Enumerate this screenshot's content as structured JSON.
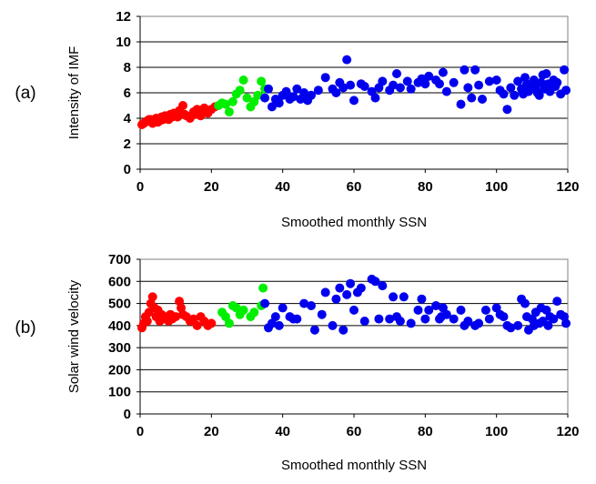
{
  "chart_data": [
    {
      "type": "scatter",
      "panel_label": "(a)",
      "xlabel": "Smoothed monthly SSN",
      "ylabel": "Intensity of IMF",
      "xlim": [
        0,
        120
      ],
      "ylim": [
        0,
        12
      ],
      "xticks": [
        0,
        20,
        40,
        60,
        80,
        100,
        120
      ],
      "yticks": [
        0,
        2,
        4,
        6,
        8,
        10,
        12
      ],
      "grid": "horizontal",
      "legend": "none",
      "series": [
        {
          "color": "#ff0000",
          "points": [
            [
              0.5,
              3.5
            ],
            [
              1,
              3.6
            ],
            [
              1.5,
              3.7
            ],
            [
              2,
              3.8
            ],
            [
              2.5,
              3.9
            ],
            [
              3,
              3.9
            ],
            [
              3.5,
              3.6
            ],
            [
              4,
              3.8
            ],
            [
              4.5,
              4.0
            ],
            [
              5,
              3.7
            ],
            [
              5.5,
              3.8
            ],
            [
              6,
              4.1
            ],
            [
              6.5,
              3.9
            ],
            [
              7,
              4.2
            ],
            [
              7.5,
              4.0
            ],
            [
              8,
              3.9
            ],
            [
              8.5,
              4.3
            ],
            [
              9,
              4.1
            ],
            [
              9.5,
              4.4
            ],
            [
              10,
              4.2
            ],
            [
              10.5,
              4.1
            ],
            [
              11,
              4.6
            ],
            [
              12,
              5.0
            ],
            [
              12.5,
              4.3
            ],
            [
              13,
              4.2
            ],
            [
              14,
              4.0
            ],
            [
              15,
              4.5
            ],
            [
              15.5,
              4.3
            ],
            [
              16,
              4.7
            ],
            [
              16.5,
              4.5
            ],
            [
              17,
              4.2
            ],
            [
              18,
              4.8
            ],
            [
              19,
              4.4
            ],
            [
              20,
              4.7
            ],
            [
              21,
              4.9
            ]
          ]
        },
        {
          "color": "#00ee00",
          "points": [
            [
              22,
              5.0
            ],
            [
              23,
              5.2
            ],
            [
              24,
              5.1
            ],
            [
              25,
              4.5
            ],
            [
              26,
              5.3
            ],
            [
              27,
              5.9
            ],
            [
              28,
              6.2
            ],
            [
              29,
              7.0
            ],
            [
              30,
              5.6
            ],
            [
              31,
              4.9
            ],
            [
              32,
              5.3
            ],
            [
              33,
              5.8
            ],
            [
              34,
              6.9
            ],
            [
              35,
              6.3
            ]
          ]
        },
        {
          "color": "#0000ee",
          "points": [
            [
              35,
              5.6
            ],
            [
              36,
              6.3
            ],
            [
              37,
              4.9
            ],
            [
              38,
              5.5
            ],
            [
              39,
              5.2
            ],
            [
              40,
              5.8
            ],
            [
              41,
              6.1
            ],
            [
              42,
              5.5
            ],
            [
              43,
              5.7
            ],
            [
              44,
              6.3
            ],
            [
              45,
              5.5
            ],
            [
              46,
              6.0
            ],
            [
              47,
              5.4
            ],
            [
              48,
              5.8
            ],
            [
              50,
              6.2
            ],
            [
              52,
              7.2
            ],
            [
              54,
              6.3
            ],
            [
              55,
              6.0
            ],
            [
              56,
              6.8
            ],
            [
              57,
              6.4
            ],
            [
              58,
              8.6
            ],
            [
              59,
              6.6
            ],
            [
              60,
              5.4
            ],
            [
              62,
              6.7
            ],
            [
              63,
              6.5
            ],
            [
              65,
              6.1
            ],
            [
              66,
              5.6
            ],
            [
              67,
              6.4
            ],
            [
              68,
              6.9
            ],
            [
              70,
              6.2
            ],
            [
              71,
              6.6
            ],
            [
              72,
              7.5
            ],
            [
              73,
              6.4
            ],
            [
              75,
              6.9
            ],
            [
              76,
              6.3
            ],
            [
              78,
              6.8
            ],
            [
              79,
              7.1
            ],
            [
              80,
              6.7
            ],
            [
              81,
              7.3
            ],
            [
              83,
              7.0
            ],
            [
              84,
              6.7
            ],
            [
              85,
              7.6
            ],
            [
              86,
              6.1
            ],
            [
              88,
              6.8
            ],
            [
              90,
              5.1
            ],
            [
              91,
              7.8
            ],
            [
              92,
              6.4
            ],
            [
              93,
              5.6
            ],
            [
              94,
              7.8
            ],
            [
              95,
              6.6
            ],
            [
              96,
              5.5
            ],
            [
              98,
              6.9
            ],
            [
              100,
              7.0
            ],
            [
              101,
              6.2
            ],
            [
              102,
              5.9
            ],
            [
              103,
              4.7
            ],
            [
              104,
              6.4
            ],
            [
              105,
              5.8
            ],
            [
              106,
              6.9
            ],
            [
              107,
              6.3
            ],
            [
              107.5,
              5.9
            ],
            [
              108,
              7.2
            ],
            [
              108.5,
              6.7
            ],
            [
              109,
              6.1
            ],
            [
              110,
              6.5
            ],
            [
              110.5,
              7.0
            ],
            [
              111,
              6.4
            ],
            [
              111.5,
              6.0
            ],
            [
              112,
              5.8
            ],
            [
              112.5,
              6.8
            ],
            [
              113,
              7.4
            ],
            [
              113.5,
              6.3
            ],
            [
              114,
              7.5
            ],
            [
              114.5,
              6.7
            ],
            [
              115,
              6.1
            ],
            [
              116,
              7.0
            ],
            [
              116.5,
              6.5
            ],
            [
              117,
              6.8
            ],
            [
              118,
              5.9
            ],
            [
              119,
              7.8
            ],
            [
              119.5,
              6.2
            ]
          ]
        }
      ]
    },
    {
      "type": "scatter",
      "panel_label": "(b)",
      "xlabel": "Smoothed monthly SSN",
      "ylabel": "Solar wind velocity",
      "xlim": [
        0,
        120
      ],
      "ylim": [
        0,
        700
      ],
      "xticks": [
        0,
        20,
        40,
        60,
        80,
        100,
        120
      ],
      "yticks": [
        0,
        100,
        200,
        300,
        400,
        500,
        600,
        700
      ],
      "grid": "horizontal",
      "legend": "none",
      "series": [
        {
          "color": "#ff0000",
          "points": [
            [
              0.5,
              390
            ],
            [
              1,
              410
            ],
            [
              1.5,
              440
            ],
            [
              2,
              420
            ],
            [
              2.5,
              460
            ],
            [
              3,
              500
            ],
            [
              3.5,
              530
            ],
            [
              4,
              480
            ],
            [
              4.5,
              440
            ],
            [
              5,
              470
            ],
            [
              5.5,
              420
            ],
            [
              6,
              450
            ],
            [
              6.5,
              430
            ],
            [
              7,
              440
            ],
            [
              8,
              420
            ],
            [
              8.5,
              450
            ],
            [
              9,
              430
            ],
            [
              10,
              440
            ],
            [
              11,
              510
            ],
            [
              11.5,
              480
            ],
            [
              12,
              450
            ],
            [
              13,
              440
            ],
            [
              14,
              420
            ],
            [
              15,
              430
            ],
            [
              16,
              400
            ],
            [
              17,
              440
            ],
            [
              18,
              420
            ],
            [
              19,
              400
            ],
            [
              20,
              410
            ]
          ]
        },
        {
          "color": "#00ee00",
          "points": [
            [
              23,
              460
            ],
            [
              24,
              440
            ],
            [
              25,
              410
            ],
            [
              26,
              490
            ],
            [
              27,
              480
            ],
            [
              28,
              450
            ],
            [
              29,
              470
            ],
            [
              31,
              440
            ],
            [
              32,
              460
            ],
            [
              34,
              490
            ],
            [
              34.5,
              570
            ]
          ]
        },
        {
          "color": "#0000ee",
          "points": [
            [
              35,
              500
            ],
            [
              36,
              390
            ],
            [
              37,
              410
            ],
            [
              38,
              440
            ],
            [
              39,
              400
            ],
            [
              40,
              480
            ],
            [
              42,
              440
            ],
            [
              43,
              430
            ],
            [
              44,
              430
            ],
            [
              46,
              500
            ],
            [
              48,
              490
            ],
            [
              49,
              380
            ],
            [
              51,
              450
            ],
            [
              52,
              550
            ],
            [
              54,
              400
            ],
            [
              55,
              520
            ],
            [
              56,
              570
            ],
            [
              57,
              380
            ],
            [
              58,
              540
            ],
            [
              59,
              590
            ],
            [
              60,
              470
            ],
            [
              61,
              550
            ],
            [
              62,
              570
            ],
            [
              63,
              420
            ],
            [
              65,
              610
            ],
            [
              66,
              600
            ],
            [
              67,
              430
            ],
            [
              68,
              580
            ],
            [
              70,
              430
            ],
            [
              71,
              530
            ],
            [
              72,
              440
            ],
            [
              73,
              420
            ],
            [
              74,
              530
            ],
            [
              76,
              410
            ],
            [
              78,
              470
            ],
            [
              79,
              520
            ],
            [
              80,
              430
            ],
            [
              81,
              470
            ],
            [
              83,
              490
            ],
            [
              84,
              430
            ],
            [
              84.5,
              440
            ],
            [
              85,
              480
            ],
            [
              86,
              450
            ],
            [
              88,
              430
            ],
            [
              90,
              470
            ],
            [
              91,
              400
            ],
            [
              92,
              420
            ],
            [
              94,
              400
            ],
            [
              95,
              410
            ],
            [
              97,
              470
            ],
            [
              98,
              430
            ],
            [
              100,
              480
            ],
            [
              101,
              450
            ],
            [
              102,
              440
            ],
            [
              103,
              400
            ],
            [
              104,
              390
            ],
            [
              106,
              400
            ],
            [
              107,
              520
            ],
            [
              108,
              500
            ],
            [
              108.5,
              440
            ],
            [
              109,
              380
            ],
            [
              110,
              430
            ],
            [
              110.5,
              400
            ],
            [
              111,
              460
            ],
            [
              112,
              410
            ],
            [
              112.5,
              480
            ],
            [
              113,
              420
            ],
            [
              114,
              470
            ],
            [
              114.5,
              400
            ],
            [
              115,
              440
            ],
            [
              116,
              430
            ],
            [
              117,
              510
            ],
            [
              118,
              450
            ],
            [
              119,
              440
            ],
            [
              119.5,
              410
            ]
          ]
        }
      ]
    }
  ]
}
